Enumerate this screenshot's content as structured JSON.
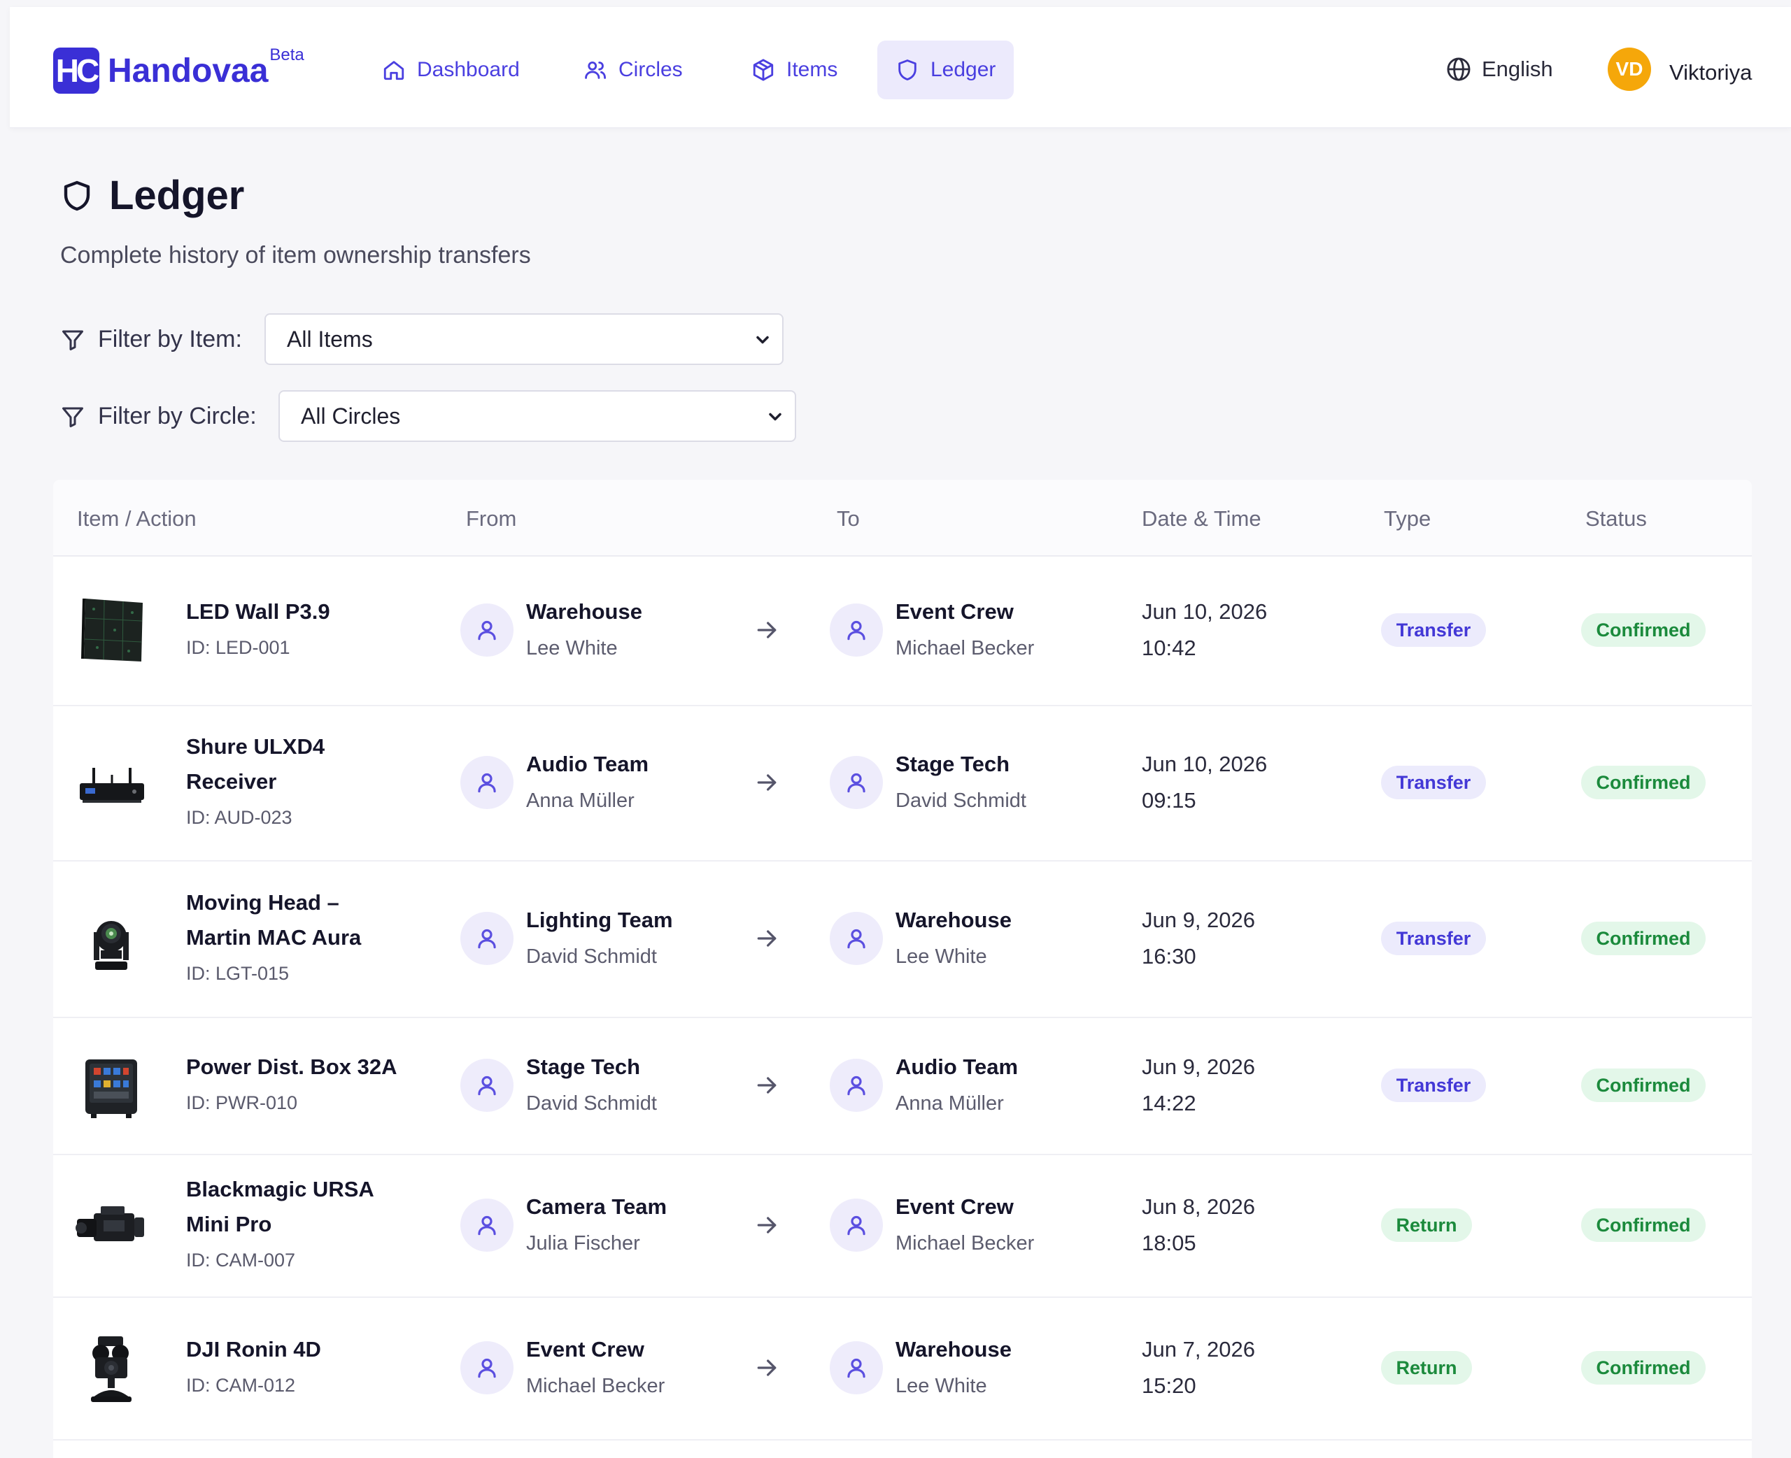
{
  "brand": {
    "mark": "HC",
    "name": "Handovaa",
    "tag": "Beta",
    "accent": "#3a2fd6"
  },
  "nav": [
    {
      "label": "Dashboard",
      "icon": "home-icon"
    },
    {
      "label": "Circles",
      "icon": "users-icon"
    },
    {
      "label": "Items",
      "icon": "box-icon"
    },
    {
      "label": "Ledger",
      "icon": "shield-icon",
      "active": true
    }
  ],
  "header_right": {
    "language": "English",
    "avatar_initials": "VD",
    "avatar_color": "#f5a70a",
    "user_name": "Viktoriya"
  },
  "page": {
    "title": "Ledger",
    "subtitle": "Complete history of item ownership transfers"
  },
  "filters": {
    "item": {
      "label": "Filter by Item:",
      "value": "All Items"
    },
    "circle": {
      "label": "Filter by Circle:",
      "value": "All Circles"
    }
  },
  "table": {
    "columns": [
      "Item / Action",
      "From",
      "To",
      "Date & Time",
      "Type",
      "Status"
    ],
    "rows": [
      {
        "name_lines": [
          "LED Wall P3.9"
        ],
        "id": "ID: LED-001",
        "thumb": "led-wall",
        "from_name": "Warehouse",
        "from_person": "Lee White",
        "to_name": "Event Crew",
        "to_person": "Michael Becker",
        "date": "Jun 10, 2026",
        "time": "10:42",
        "type": "Transfer",
        "status": "Confirmed"
      },
      {
        "name_lines": [
          "Shure ULXD4",
          "Receiver"
        ],
        "id": "ID: AUD-023",
        "thumb": "receiver",
        "from_name": "Audio Team",
        "from_person": "Anna Müller",
        "to_name": "Stage Tech",
        "to_person": "David Schmidt",
        "date": "Jun 10, 2026",
        "time": "09:15",
        "type": "Transfer",
        "status": "Confirmed"
      },
      {
        "name_lines": [
          "Moving Head –",
          "Martin MAC Aura"
        ],
        "id": "ID: LGT-015",
        "thumb": "moving-head",
        "from_name": "Lighting Team",
        "from_person": "David Schmidt",
        "to_name": "Warehouse",
        "to_person": "Lee White",
        "date": "Jun 9, 2026",
        "time": "16:30",
        "type": "Transfer",
        "status": "Confirmed"
      },
      {
        "name_lines": [
          "Power Dist. Box 32A"
        ],
        "id": "ID: PWR-010",
        "thumb": "power-box",
        "from_name": "Stage Tech",
        "from_person": "David Schmidt",
        "to_name": "Audio Team",
        "to_person": "Anna Müller",
        "date": "Jun 9, 2026",
        "time": "14:22",
        "type": "Transfer",
        "status": "Confirmed"
      },
      {
        "name_lines": [
          "Blackmagic URSA",
          "Mini Pro"
        ],
        "id": "ID: CAM-007",
        "thumb": "camera",
        "from_name": "Camera Team",
        "from_person": "Julia Fischer",
        "to_name": "Event Crew",
        "to_person": "Michael Becker",
        "date": "Jun 8, 2026",
        "time": "18:05",
        "type": "Return",
        "status": "Confirmed"
      },
      {
        "name_lines": [
          "DJI Ronin 4D"
        ],
        "id": "ID: CAM-012",
        "thumb": "gimbal-camera",
        "from_name": "Event Crew",
        "from_person": "Michael Becker",
        "to_name": "Warehouse",
        "to_person": "Lee White",
        "date": "Jun 7, 2026",
        "time": "15:20",
        "type": "Return",
        "status": "Confirmed"
      }
    ]
  }
}
